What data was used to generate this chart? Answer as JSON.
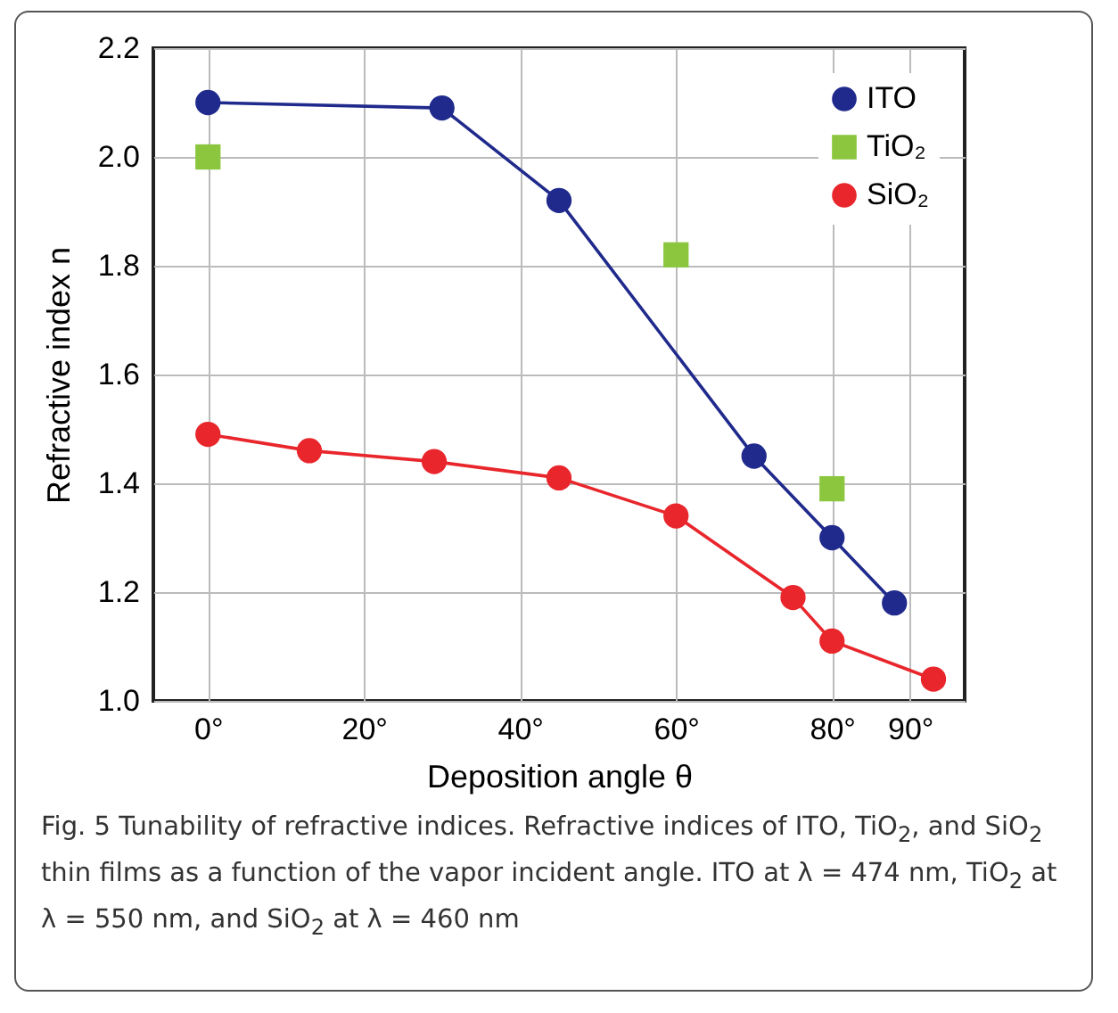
{
  "chart_data": {
    "type": "line",
    "xlabel": "Deposition angle θ",
    "ylabel": "Refractive index n",
    "xlim": [
      -7,
      97
    ],
    "ylim": [
      1.0,
      2.2
    ],
    "xticks": [
      {
        "value": 0,
        "label": "0°"
      },
      {
        "value": 20,
        "label": "20°"
      },
      {
        "value": 40,
        "label": "40°"
      },
      {
        "value": 60,
        "label": "60°"
      },
      {
        "value": 80,
        "label": "80°"
      },
      {
        "value": 90,
        "label": "90°"
      }
    ],
    "yticks": [
      {
        "value": 1,
        "label": "1.0"
      },
      1.2,
      1.4,
      1.6,
      1.8,
      {
        "value": 2,
        "label": "2.0"
      },
      2.2
    ],
    "grid": true,
    "legend": "top right",
    "line_style": "solid",
    "series": [
      {
        "name": "ITO",
        "marker": "circle",
        "color": "#1f2a8c",
        "x": [
          0,
          30,
          45,
          70,
          80,
          88
        ],
        "values": [
          2.1,
          2.09,
          1.92,
          1.45,
          1.3,
          1.18
        ]
      },
      {
        "name": "TiO₂",
        "type": "scatter",
        "marker": "square",
        "color": "#8cc63f",
        "x": [
          0,
          60,
          80
        ],
        "values": [
          2.0,
          1.82,
          1.39
        ]
      },
      {
        "name": "SiO₂",
        "marker": "circle",
        "color": "#e8262c",
        "x": [
          0,
          13,
          29,
          45,
          60,
          75,
          80,
          93
        ],
        "values": [
          1.49,
          1.46,
          1.44,
          1.41,
          1.34,
          1.19,
          1.11,
          1.04
        ]
      }
    ],
    "annotations": [
      "Fig. 5 Tunability of refractive indices. Refractive indices of ITO, TiO$_{2}$, and SiO$_{2}$ thin films as a function of the vapor incident angle. ITO at λ = 474 nm, TiO$_{2}$ at λ = 550 nm, and SiO$_{2}$ at λ = 460 nm"
    ]
  }
}
